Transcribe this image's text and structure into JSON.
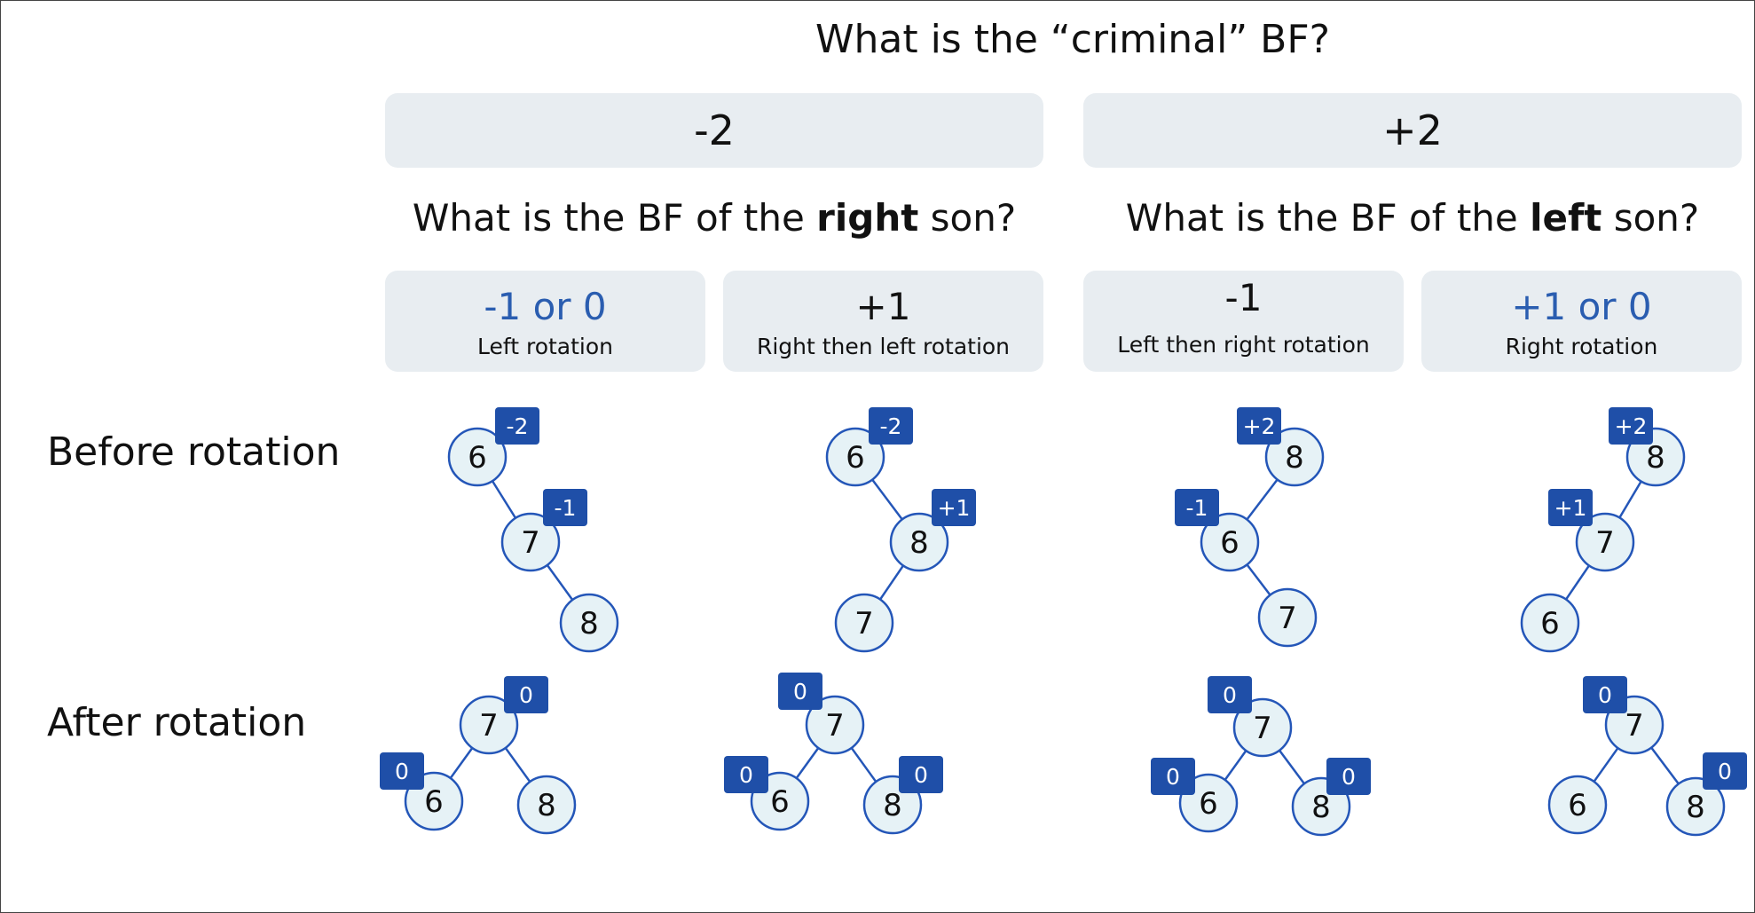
{
  "title": "What is the “criminal” BF?",
  "criminal_bf": {
    "neg": "-2",
    "pos": "+2"
  },
  "questions": {
    "right": {
      "pre": "What is the BF of the ",
      "bold": "right",
      "post": " son?"
    },
    "left": {
      "pre": "What is the BF of the ",
      "bold": "left",
      "post": " son?"
    }
  },
  "cases": [
    {
      "bf": "-1 or 0",
      "op": "Left rotation"
    },
    {
      "bf": "+1",
      "op": "Right then left rotation"
    },
    {
      "bf": "-1",
      "op": "Left then right rotation"
    },
    {
      "bf": "+1 or 0",
      "op": "Right rotation"
    }
  ],
  "row_labels": {
    "before": "Before rotation",
    "after": "After rotation"
  },
  "colors": {
    "panel": "#e8edf1",
    "node_fill": "#e6f2f6",
    "node_stroke": "#2456b8",
    "badge": "#1f4fa8",
    "accent_text": "#2a5db0"
  },
  "trees": {
    "before": [
      {
        "nodes": [
          {
            "label": "6",
            "bf": "-2"
          },
          {
            "label": "7",
            "bf": "-1"
          },
          {
            "label": "8"
          }
        ],
        "edges": [
          [
            0,
            1
          ],
          [
            1,
            2
          ]
        ]
      },
      {
        "nodes": [
          {
            "label": "6",
            "bf": "-2"
          },
          {
            "label": "8",
            "bf": "+1"
          },
          {
            "label": "7"
          }
        ],
        "edges": [
          [
            0,
            1
          ],
          [
            1,
            2
          ]
        ]
      },
      {
        "nodes": [
          {
            "label": "8",
            "bf": "+2"
          },
          {
            "label": "6",
            "bf": "-1"
          },
          {
            "label": "7"
          }
        ],
        "edges": [
          [
            0,
            1
          ],
          [
            1,
            2
          ]
        ]
      },
      {
        "nodes": [
          {
            "label": "8",
            "bf": "+2"
          },
          {
            "label": "7",
            "bf": "+1"
          },
          {
            "label": "6"
          }
        ],
        "edges": [
          [
            0,
            1
          ],
          [
            1,
            2
          ]
        ]
      }
    ],
    "after": [
      {
        "nodes": [
          {
            "label": "7",
            "bf": "0"
          },
          {
            "label": "6",
            "bf": "0"
          },
          {
            "label": "8"
          }
        ],
        "edges": [
          [
            0,
            1
          ],
          [
            0,
            2
          ]
        ]
      },
      {
        "nodes": [
          {
            "label": "7",
            "bf": "0"
          },
          {
            "label": "6",
            "bf": "0"
          },
          {
            "label": "8",
            "bf": "0"
          }
        ],
        "edges": [
          [
            0,
            1
          ],
          [
            0,
            2
          ]
        ]
      },
      {
        "nodes": [
          {
            "label": "7",
            "bf": "0"
          },
          {
            "label": "6",
            "bf": "0"
          },
          {
            "label": "8",
            "bf": "0"
          }
        ],
        "edges": [
          [
            0,
            1
          ],
          [
            0,
            2
          ]
        ]
      },
      {
        "nodes": [
          {
            "label": "7",
            "bf": "0"
          },
          {
            "label": "6"
          },
          {
            "label": "8",
            "bf": "0"
          }
        ],
        "edges": [
          [
            0,
            1
          ],
          [
            0,
            2
          ]
        ]
      }
    ]
  }
}
